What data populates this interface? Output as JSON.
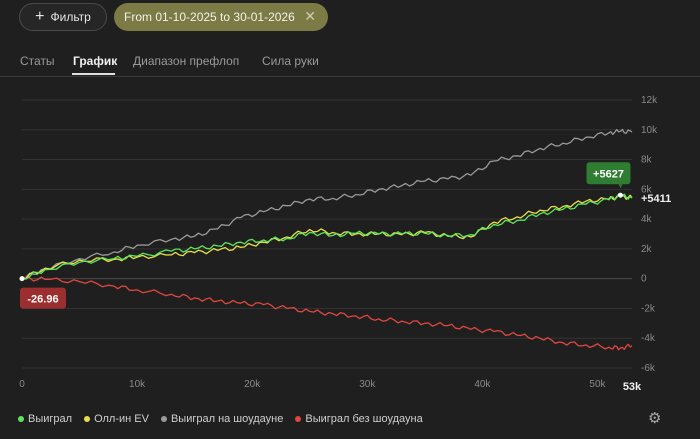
{
  "toolbar": {
    "filter_label": "Фильтр",
    "date_range": "From 01-10-2025 to 30-01-2026"
  },
  "tabs": [
    {
      "label": "Статы",
      "active": false
    },
    {
      "label": "График",
      "active": true
    },
    {
      "label": "Диапазон префлоп",
      "active": false
    },
    {
      "label": "Сила руки",
      "active": false
    }
  ],
  "legend": [
    {
      "label": "Выиграл",
      "color": "#5ce65c"
    },
    {
      "label": "Олл-ин EV",
      "color": "#e8e04a"
    },
    {
      "label": "Выиграл на шоудауне",
      "color": "#9a9a9a"
    },
    {
      "label": "Выиграл без шоудауна",
      "color": "#e0473f"
    }
  ],
  "chart_data": {
    "type": "line",
    "x_ticks": [
      "0",
      "10k",
      "20k",
      "30k",
      "40k",
      "50k"
    ],
    "x_end_label": "53k",
    "x_range": [
      0,
      53000
    ],
    "y_ticks": [
      "12k",
      "10k",
      "8k",
      "6k",
      "4k",
      "2k",
      "0",
      "-2k",
      "-4k",
      "-6k"
    ],
    "y_range": [
      -6000,
      12000
    ],
    "grid": true,
    "annotations": {
      "max_badge": "+5627",
      "final_label": "+5411",
      "min_badge": "-26.96"
    },
    "series": [
      {
        "name": "Выиграл",
        "color": "#5ce65c",
        "x": [
          0,
          2000,
          5000,
          8000,
          10000,
          13000,
          15000,
          17000,
          19000,
          21000,
          23000,
          25000,
          27000,
          29000,
          31000,
          33000,
          35000,
          37000,
          39000,
          41000,
          43000,
          45000,
          47000,
          49000,
          51000,
          52000,
          53000
        ],
        "y": [
          0,
          600,
          1100,
          1350,
          1500,
          1850,
          2000,
          2200,
          2450,
          2600,
          2700,
          3100,
          2900,
          3050,
          3000,
          3000,
          3050,
          2900,
          2950,
          3650,
          3900,
          4350,
          4650,
          5000,
          5300,
          5600,
          5411
        ]
      },
      {
        "name": "Олл-ин EV",
        "color": "#e8e04a",
        "x": [
          0,
          2000,
          5000,
          8000,
          10000,
          13000,
          15000,
          17000,
          19000,
          21000,
          23000,
          25000,
          27000,
          29000,
          31000,
          33000,
          35000,
          37000,
          39000,
          41000,
          43000,
          45000,
          47000,
          49000,
          51000,
          52000,
          53000
        ],
        "y": [
          0,
          700,
          1250,
          1300,
          1450,
          1600,
          1750,
          1900,
          2100,
          2450,
          2800,
          3300,
          3100,
          3000,
          3000,
          2950,
          3100,
          2850,
          2800,
          3800,
          4150,
          4600,
          4850,
          5200,
          5350,
          5500,
          5450
        ]
      },
      {
        "name": "Выиграл на шоудауне",
        "color": "#9a9a9a",
        "x": [
          0,
          2000,
          5000,
          8000,
          10000,
          13000,
          15000,
          17000,
          19000,
          21000,
          23000,
          25000,
          27000,
          29000,
          31000,
          33000,
          35000,
          37000,
          39000,
          41000,
          43000,
          45000,
          47000,
          49000,
          51000,
          52000,
          53000
        ],
        "y": [
          0,
          650,
          1350,
          1800,
          2250,
          2650,
          2850,
          3350,
          4100,
          4500,
          4900,
          5350,
          5400,
          5650,
          6000,
          6250,
          6550,
          6700,
          6950,
          7900,
          8250,
          8750,
          9100,
          9500,
          9800,
          9900,
          9850
        ]
      },
      {
        "name": "Выиграл без шоудауна",
        "color": "#e0473f",
        "x": [
          0,
          2000,
          5000,
          8000,
          10000,
          13000,
          15000,
          17000,
          19000,
          21000,
          23000,
          25000,
          27000,
          29000,
          31000,
          33000,
          35000,
          37000,
          39000,
          41000,
          43000,
          45000,
          47000,
          49000,
          51000,
          52000,
          53000
        ],
        "y": [
          0,
          -50,
          -200,
          -500,
          -750,
          -1050,
          -1300,
          -1500,
          -1650,
          -1750,
          -2000,
          -2200,
          -2350,
          -2500,
          -2700,
          -2850,
          -3000,
          -3150,
          -3400,
          -3550,
          -3800,
          -4000,
          -4300,
          -4450,
          -4600,
          -4650,
          -4500
        ]
      }
    ]
  }
}
